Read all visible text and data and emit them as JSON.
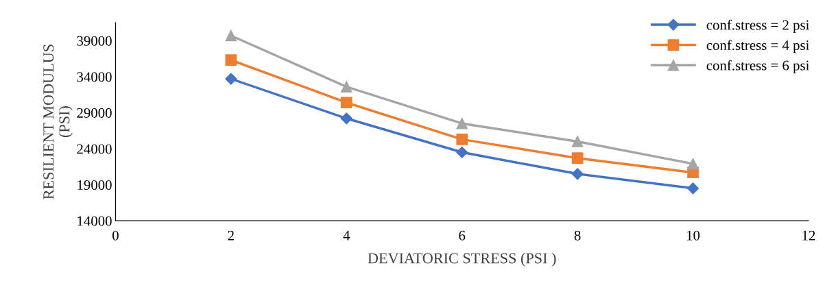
{
  "chart_data": {
    "type": "line",
    "xlabel": "DEVIATORIC STRESS (PSI )",
    "ylabel": "RESILIENT MODULUS\n(PSI)",
    "x": [
      2,
      4,
      6,
      8,
      10
    ],
    "series": [
      {
        "name": "conf.stress = 2 psi",
        "color": "#4472c4",
        "marker": "diamond",
        "values": [
          33700,
          28200,
          23500,
          20500,
          18500
        ]
      },
      {
        "name": "conf.stress = 4 psi",
        "color": "#ed7d31",
        "marker": "square",
        "values": [
          36300,
          30400,
          25300,
          22700,
          20700
        ]
      },
      {
        "name": "conf.stress = 6 psi",
        "color": "#a5a5a5",
        "marker": "triangle",
        "values": [
          39700,
          32600,
          27500,
          25000,
          21900
        ]
      }
    ],
    "xlim": [
      0,
      12
    ],
    "xticks": [
      0,
      2,
      4,
      6,
      8,
      10,
      12
    ],
    "ylim": [
      14000,
      41500
    ],
    "yticks": [
      14000,
      19000,
      24000,
      29000,
      34000,
      39000
    ],
    "grid": false,
    "legend": "top right",
    "line_style": "solid"
  }
}
